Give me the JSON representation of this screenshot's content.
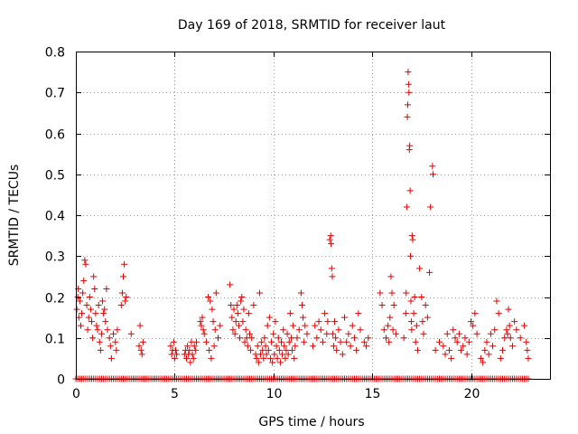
{
  "chart_data": {
    "type": "scatter",
    "title": "Day 169 of 2018, SRMTID for receiver laut",
    "xlabel": "GPS time / hours",
    "ylabel": "SRMTID / TECUs",
    "xlim": [
      0,
      24.0
    ],
    "ylim": [
      0,
      0.8
    ],
    "xticks": [
      0,
      5,
      10,
      15,
      20
    ],
    "xtick_labels": [
      "0",
      "5",
      "10",
      "15",
      "20"
    ],
    "yticks": [
      0,
      0.1,
      0.2,
      0.3,
      0.4,
      0.5,
      0.6,
      0.7,
      0.8
    ],
    "ytick_labels": [
      "0",
      "0.1",
      "0.2",
      "0.3",
      "0.4",
      "0.5",
      "0.6",
      "0.7",
      "0.8"
    ],
    "grid": true,
    "marker": "+",
    "color": "#e00000",
    "zero_baseline": {
      "x_start": 0.0,
      "x_end": 22.9,
      "step": 0.1,
      "y": 0
    },
    "series": [
      {
        "name": "SRMTID",
        "points": [
          [
            0.05,
            0.17
          ],
          [
            0.1,
            0.2
          ],
          [
            0.12,
            0.22
          ],
          [
            0.15,
            0.15
          ],
          [
            0.2,
            0.19
          ],
          [
            0.25,
            0.13
          ],
          [
            0.3,
            0.16
          ],
          [
            0.35,
            0.21
          ],
          [
            0.4,
            0.24
          ],
          [
            0.45,
            0.29
          ],
          [
            0.5,
            0.28
          ],
          [
            0.55,
            0.18
          ],
          [
            0.6,
            0.12
          ],
          [
            0.65,
            0.15
          ],
          [
            0.7,
            0.2
          ],
          [
            0.75,
            0.17
          ],
          [
            0.8,
            0.14
          ],
          [
            0.85,
            0.1
          ],
          [
            0.9,
            0.25
          ],
          [
            0.95,
            0.22
          ],
          [
            1.0,
            0.16
          ],
          [
            1.05,
            0.13
          ],
          [
            1.1,
            0.12
          ],
          [
            1.15,
            0.18
          ],
          [
            1.2,
            0.09
          ],
          [
            1.25,
            0.07
          ],
          [
            1.3,
            0.11
          ],
          [
            1.35,
            0.19
          ],
          [
            1.4,
            0.16
          ],
          [
            1.45,
            0.17
          ],
          [
            1.5,
            0.14
          ],
          [
            1.55,
            0.22
          ],
          [
            1.6,
            0.12
          ],
          [
            1.7,
            0.1
          ],
          [
            1.75,
            0.08
          ],
          [
            1.8,
            0.05
          ],
          [
            1.9,
            0.11
          ],
          [
            2.0,
            0.09
          ],
          [
            2.05,
            0.07
          ],
          [
            2.1,
            0.12
          ],
          [
            2.3,
            0.18
          ],
          [
            2.35,
            0.21
          ],
          [
            2.4,
            0.25
          ],
          [
            2.45,
            0.28
          ],
          [
            2.5,
            0.19
          ],
          [
            2.55,
            0.2
          ],
          [
            2.8,
            0.11
          ],
          [
            3.2,
            0.08
          ],
          [
            3.25,
            0.13
          ],
          [
            3.3,
            0.07
          ],
          [
            3.35,
            0.06
          ],
          [
            3.4,
            0.09
          ],
          [
            4.8,
            0.08
          ],
          [
            4.85,
            0.06
          ],
          [
            4.9,
            0.07
          ],
          [
            4.95,
            0.09
          ],
          [
            5.0,
            0.05
          ],
          [
            5.05,
            0.07
          ],
          [
            5.1,
            0.06
          ],
          [
            5.5,
            0.06
          ],
          [
            5.55,
            0.07
          ],
          [
            5.6,
            0.05
          ],
          [
            5.65,
            0.08
          ],
          [
            5.7,
            0.06
          ],
          [
            5.75,
            0.07
          ],
          [
            5.8,
            0.04
          ],
          [
            5.85,
            0.09
          ],
          [
            5.9,
            0.06
          ],
          [
            5.95,
            0.05
          ],
          [
            6.0,
            0.08
          ],
          [
            6.05,
            0.07
          ],
          [
            6.1,
            0.09
          ],
          [
            6.3,
            0.14
          ],
          [
            6.35,
            0.13
          ],
          [
            6.4,
            0.15
          ],
          [
            6.45,
            0.12
          ],
          [
            6.5,
            0.11
          ],
          [
            6.6,
            0.09
          ],
          [
            6.7,
            0.2
          ],
          [
            6.75,
            0.07
          ],
          [
            6.8,
            0.19
          ],
          [
            6.85,
            0.05
          ],
          [
            6.9,
            0.17
          ],
          [
            6.95,
            0.14
          ],
          [
            7.0,
            0.08
          ],
          [
            7.05,
            0.12
          ],
          [
            7.1,
            0.21
          ],
          [
            7.2,
            0.1
          ],
          [
            7.3,
            0.13
          ],
          [
            7.8,
            0.23
          ],
          [
            7.85,
            0.18
          ],
          [
            7.9,
            0.15
          ],
          [
            7.95,
            0.12
          ],
          [
            8.0,
            0.17
          ],
          [
            8.05,
            0.11
          ],
          [
            8.1,
            0.14
          ],
          [
            8.15,
            0.18
          ],
          [
            8.2,
            0.16
          ],
          [
            8.25,
            0.13
          ],
          [
            8.3,
            0.1
          ],
          [
            8.35,
            0.19
          ],
          [
            8.4,
            0.2
          ],
          [
            8.45,
            0.14
          ],
          [
            8.5,
            0.17
          ],
          [
            8.55,
            0.09
          ],
          [
            8.6,
            0.12
          ],
          [
            8.65,
            0.1
          ],
          [
            8.7,
            0.08
          ],
          [
            8.75,
            0.16
          ],
          [
            8.8,
            0.11
          ],
          [
            8.85,
            0.07
          ],
          [
            8.9,
            0.1
          ],
          [
            9.0,
            0.18
          ],
          [
            9.1,
            0.06
          ],
          [
            9.15,
            0.05
          ],
          [
            9.2,
            0.08
          ],
          [
            9.25,
            0.04
          ],
          [
            9.3,
            0.21
          ],
          [
            9.35,
            0.06
          ],
          [
            9.4,
            0.09
          ],
          [
            9.45,
            0.07
          ],
          [
            9.5,
            0.05
          ],
          [
            9.55,
            0.1
          ],
          [
            9.6,
            0.08
          ],
          [
            9.65,
            0.06
          ],
          [
            9.7,
            0.13
          ],
          [
            9.75,
            0.07
          ],
          [
            9.8,
            0.15
          ],
          [
            9.85,
            0.05
          ],
          [
            9.9,
            0.09
          ],
          [
            9.95,
            0.04
          ],
          [
            10.0,
            0.11
          ],
          [
            10.05,
            0.06
          ],
          [
            10.1,
            0.14
          ],
          [
            10.15,
            0.08
          ],
          [
            10.2,
            0.05
          ],
          [
            10.25,
            0.1
          ],
          [
            10.3,
            0.07
          ],
          [
            10.35,
            0.04
          ],
          [
            10.4,
            0.09
          ],
          [
            10.45,
            0.06
          ],
          [
            10.5,
            0.12
          ],
          [
            10.55,
            0.08
          ],
          [
            10.6,
            0.05
          ],
          [
            10.65,
            0.07
          ],
          [
            10.7,
            0.11
          ],
          [
            10.75,
            0.06
          ],
          [
            10.8,
            0.09
          ],
          [
            10.85,
            0.16
          ],
          [
            10.9,
            0.1
          ],
          [
            10.95,
            0.07
          ],
          [
            11.0,
            0.13
          ],
          [
            11.05,
            0.05
          ],
          [
            11.1,
            0.08
          ],
          [
            11.2,
            0.1
          ],
          [
            11.3,
            0.12
          ],
          [
            11.4,
            0.21
          ],
          [
            11.45,
            0.18
          ],
          [
            11.5,
            0.15
          ],
          [
            11.55,
            0.09
          ],
          [
            11.6,
            0.13
          ],
          [
            11.7,
            0.11
          ],
          [
            12.0,
            0.08
          ],
          [
            12.1,
            0.13
          ],
          [
            12.2,
            0.1
          ],
          [
            12.3,
            0.14
          ],
          [
            12.4,
            0.12
          ],
          [
            12.5,
            0.09
          ],
          [
            12.6,
            0.16
          ],
          [
            12.7,
            0.11
          ],
          [
            12.75,
            0.14
          ],
          [
            12.85,
            0.34
          ],
          [
            12.9,
            0.35
          ],
          [
            12.92,
            0.33
          ],
          [
            12.95,
            0.27
          ],
          [
            12.98,
            0.25
          ],
          [
            13.0,
            0.11
          ],
          [
            13.05,
            0.08
          ],
          [
            13.1,
            0.14
          ],
          [
            13.15,
            0.1
          ],
          [
            13.2,
            0.07
          ],
          [
            13.3,
            0.12
          ],
          [
            13.4,
            0.09
          ],
          [
            13.5,
            0.06
          ],
          [
            13.6,
            0.15
          ],
          [
            13.7,
            0.09
          ],
          [
            13.8,
            0.11
          ],
          [
            13.9,
            0.08
          ],
          [
            14.0,
            0.13
          ],
          [
            14.1,
            0.1
          ],
          [
            14.2,
            0.07
          ],
          [
            14.3,
            0.16
          ],
          [
            14.4,
            0.12
          ],
          [
            14.6,
            0.09
          ],
          [
            14.7,
            0.08
          ],
          [
            14.8,
            0.1
          ],
          [
            15.4,
            0.21
          ],
          [
            15.5,
            0.18
          ],
          [
            15.6,
            0.12
          ],
          [
            15.7,
            0.1
          ],
          [
            15.8,
            0.13
          ],
          [
            15.85,
            0.09
          ],
          [
            15.9,
            0.15
          ],
          [
            15.95,
            0.25
          ],
          [
            16.0,
            0.21
          ],
          [
            16.05,
            0.12
          ],
          [
            16.1,
            0.18
          ],
          [
            16.2,
            0.11
          ],
          [
            16.6,
            0.1
          ],
          [
            16.7,
            0.16
          ],
          [
            16.72,
            0.21
          ],
          [
            16.75,
            0.42
          ],
          [
            16.78,
            0.64
          ],
          [
            16.8,
            0.67
          ],
          [
            16.82,
            0.75
          ],
          [
            16.84,
            0.72
          ],
          [
            16.86,
            0.7
          ],
          [
            16.88,
            0.56
          ],
          [
            16.9,
            0.57
          ],
          [
            16.92,
            0.46
          ],
          [
            16.94,
            0.3
          ],
          [
            16.96,
            0.19
          ],
          [
            16.98,
            0.14
          ],
          [
            17.0,
            0.12
          ],
          [
            17.02,
            0.35
          ],
          [
            17.05,
            0.34
          ],
          [
            17.1,
            0.16
          ],
          [
            17.15,
            0.2
          ],
          [
            17.2,
            0.09
          ],
          [
            17.25,
            0.13
          ],
          [
            17.3,
            0.07
          ],
          [
            17.4,
            0.27
          ],
          [
            17.5,
            0.2
          ],
          [
            17.55,
            0.14
          ],
          [
            17.6,
            0.11
          ],
          [
            17.7,
            0.18
          ],
          [
            17.8,
            0.15
          ],
          [
            17.9,
            0.26
          ],
          [
            17.95,
            0.42
          ],
          [
            18.05,
            0.52
          ],
          [
            18.08,
            0.5
          ],
          [
            18.2,
            0.07
          ],
          [
            18.4,
            0.09
          ],
          [
            18.6,
            0.08
          ],
          [
            18.7,
            0.06
          ],
          [
            18.8,
            0.11
          ],
          [
            18.9,
            0.07
          ],
          [
            19.0,
            0.05
          ],
          [
            19.1,
            0.12
          ],
          [
            19.2,
            0.1
          ],
          [
            19.3,
            0.09
          ],
          [
            19.4,
            0.11
          ],
          [
            19.5,
            0.07
          ],
          [
            19.6,
            0.08
          ],
          [
            19.7,
            0.1
          ],
          [
            19.8,
            0.06
          ],
          [
            19.9,
            0.09
          ],
          [
            20.0,
            0.14
          ],
          [
            20.1,
            0.13
          ],
          [
            20.2,
            0.16
          ],
          [
            20.3,
            0.11
          ],
          [
            20.5,
            0.05
          ],
          [
            20.6,
            0.04
          ],
          [
            20.7,
            0.07
          ],
          [
            20.8,
            0.09
          ],
          [
            20.9,
            0.06
          ],
          [
            21.0,
            0.11
          ],
          [
            21.1,
            0.08
          ],
          [
            21.2,
            0.12
          ],
          [
            21.3,
            0.19
          ],
          [
            21.4,
            0.16
          ],
          [
            21.5,
            0.05
          ],
          [
            21.6,
            0.07
          ],
          [
            21.7,
            0.1
          ],
          [
            21.8,
            0.12
          ],
          [
            21.85,
            0.11
          ],
          [
            21.9,
            0.17
          ],
          [
            21.95,
            0.13
          ],
          [
            22.0,
            0.1
          ],
          [
            22.1,
            0.08
          ],
          [
            22.2,
            0.14
          ],
          [
            22.3,
            0.12
          ],
          [
            22.5,
            0.1
          ],
          [
            22.7,
            0.13
          ],
          [
            22.8,
            0.09
          ],
          [
            22.85,
            0.07
          ],
          [
            22.9,
            0.05
          ]
        ]
      }
    ]
  }
}
